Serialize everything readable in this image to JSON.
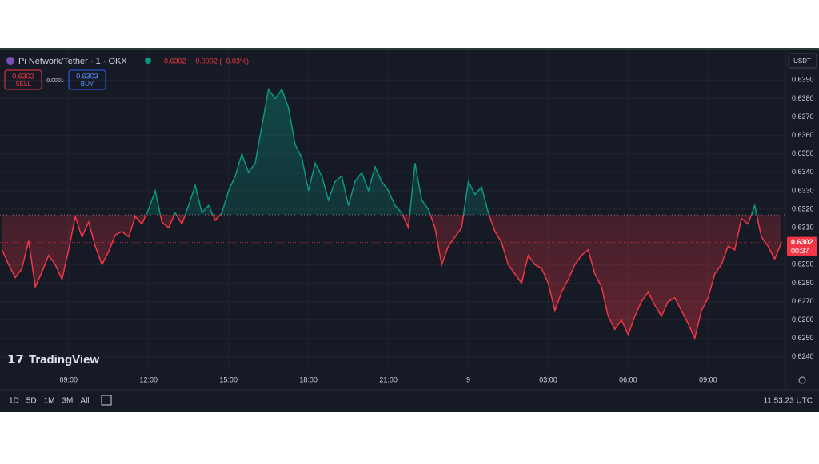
{
  "header": {
    "symbol": "Pi Network/Tether · 1 · OKX",
    "last": "0.6302",
    "change": "−0.0002 (−0.03%)",
    "sell_price": "0.6302",
    "sell_label": "SELL",
    "spread": "0.0001",
    "buy_price": "0.6303",
    "buy_label": "BUY",
    "currency": "USDT",
    "watermark": "TradingView"
  },
  "footer": {
    "ranges": [
      "1D",
      "5D",
      "1M",
      "3M",
      "All"
    ],
    "clock": "11:53:23 UTC"
  },
  "chart_data": {
    "type": "baseline",
    "values": [
      0.6298,
      0.629,
      0.6283,
      0.6288,
      0.6303,
      0.6278,
      0.6286,
      0.6295,
      0.629,
      0.6282,
      0.6298,
      0.6316,
      0.6305,
      0.6313,
      0.63,
      0.629,
      0.6297,
      0.6306,
      0.6308,
      0.6305,
      0.6316,
      0.6312,
      0.632,
      0.633,
      0.6313,
      0.631,
      0.6318,
      0.6312,
      0.6322,
      0.6333,
      0.6318,
      0.6322,
      0.6314,
      0.6318,
      0.633,
      0.6338,
      0.635,
      0.634,
      0.6345,
      0.6365,
      0.6385,
      0.638,
      0.6385,
      0.6375,
      0.6355,
      0.6348,
      0.633,
      0.6345,
      0.6338,
      0.6325,
      0.6335,
      0.6338,
      0.6322,
      0.6335,
      0.634,
      0.633,
      0.6343,
      0.6335,
      0.633,
      0.6322,
      0.6318,
      0.631,
      0.6345,
      0.6325,
      0.632,
      0.631,
      0.629,
      0.63,
      0.6305,
      0.631,
      0.6335,
      0.6328,
      0.6332,
      0.6318,
      0.6308,
      0.6302,
      0.629,
      0.6285,
      0.628,
      0.6295,
      0.629,
      0.6288,
      0.628,
      0.6265,
      0.6275,
      0.6282,
      0.629,
      0.6295,
      0.6298,
      0.6285,
      0.6278,
      0.6262,
      0.6255,
      0.626,
      0.6252,
      0.6262,
      0.627,
      0.6275,
      0.6268,
      0.6262,
      0.627,
      0.6272,
      0.6265,
      0.6258,
      0.625,
      0.6265,
      0.6272,
      0.6285,
      0.629,
      0.63,
      0.6298,
      0.6315,
      0.6312,
      0.6322,
      0.6305,
      0.63,
      0.6293,
      0.6302
    ],
    "baseline": 0.6317,
    "up_color": "#089981",
    "down_color": "#f23645",
    "last_price": {
      "value": 0.6302,
      "label": "0.6302"
    },
    "countdown": "00:37",
    "xlim": [
      -0.3,
      117.6
    ],
    "xticks": [
      {
        "value": 10,
        "label": "09:00"
      },
      {
        "value": 22,
        "label": "12:00"
      },
      {
        "value": 34,
        "label": "15:00"
      },
      {
        "value": 46,
        "label": "18:00"
      },
      {
        "value": 58,
        "label": "21:00"
      },
      {
        "value": 70,
        "label": "9"
      },
      {
        "value": 82,
        "label": "03:00"
      },
      {
        "value": 94,
        "label": "06:00"
      },
      {
        "value": 106,
        "label": "09:00"
      }
    ],
    "ylim": [
      0.6233,
      0.6404
    ],
    "yticks": [
      {
        "value": 0.639,
        "label": "0.6390"
      },
      {
        "value": 0.638,
        "label": "0.6380"
      },
      {
        "value": 0.637,
        "label": "0.6370"
      },
      {
        "value": 0.636,
        "label": "0.6360"
      },
      {
        "value": 0.635,
        "label": "0.6350"
      },
      {
        "value": 0.634,
        "label": "0.6340"
      },
      {
        "value": 0.633,
        "label": "0.6330"
      },
      {
        "value": 0.632,
        "label": "0.6320"
      },
      {
        "value": 0.631,
        "label": "0.6310"
      },
      {
        "value": 0.629,
        "label": "0.6290"
      },
      {
        "value": 0.628,
        "label": "0.6280"
      },
      {
        "value": 0.627,
        "label": "0.6270"
      },
      {
        "value": 0.626,
        "label": "0.6260"
      },
      {
        "value": 0.625,
        "label": "0.6250"
      },
      {
        "value": 0.624,
        "label": "0.6240"
      }
    ],
    "grid": true
  }
}
